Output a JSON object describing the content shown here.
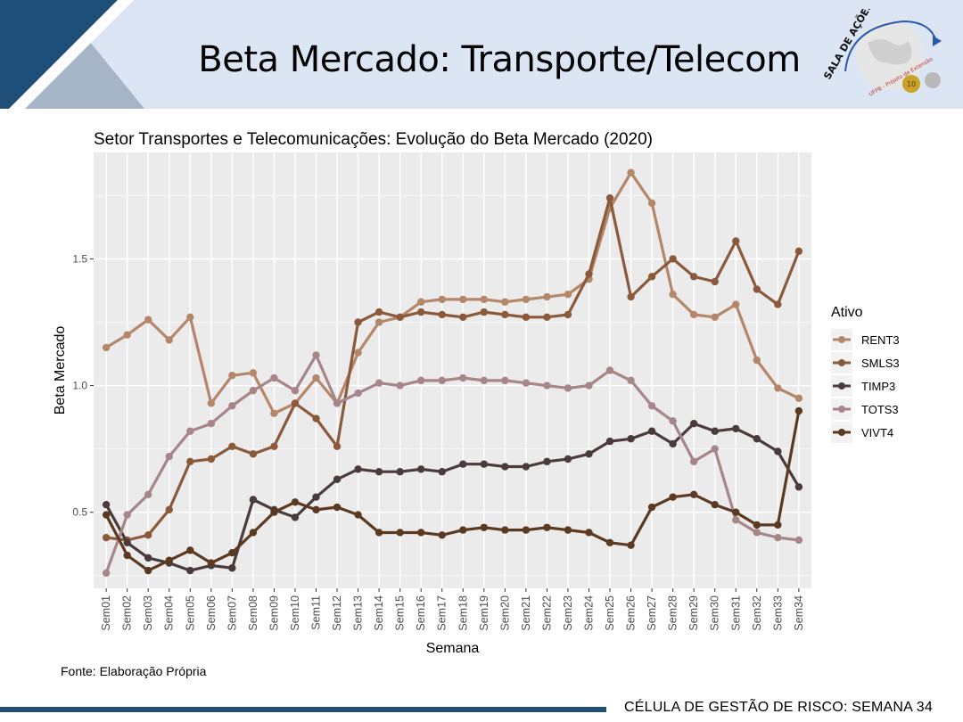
{
  "slide": {
    "title": "Beta Mercado: Transporte/Telecom",
    "source": "Fonte: Elaboração Própria",
    "footer": "CÉLULA DE GESTÃO DE RISCO: SEMANA 34",
    "logo": {
      "text": "SALA DE AÇÕES",
      "subtext": "UFPB - Projeto de Extensão",
      "badge": "10"
    }
  },
  "colors": {
    "banner_light": "#dce5f3",
    "banner_dark": "#1f4e79",
    "banner_mid": "#a6b4c7",
    "panel": "#ebebeb",
    "RENT3": "#b5876a",
    "SMLS3": "#8b5a3c",
    "TIMP3": "#4a3c3c",
    "TOTS3": "#a7868a",
    "VIVT4": "#5c3a22"
  },
  "chart_data": {
    "type": "line",
    "title": "Setor Transportes e Telecomunicações: Evolução do Beta Mercado (2020)",
    "xlabel": "Semana",
    "ylabel": "Beta Mercado",
    "ylim": [
      0.2,
      1.92
    ],
    "yticks": [
      0.5,
      1.0,
      1.5
    ],
    "ytick_labels": [
      "0.5",
      "1.0",
      "1.5"
    ],
    "grid": true,
    "legend_title": "Ativo",
    "legend_position": "right",
    "categories": [
      "Sem01",
      "Sem02",
      "Sem03",
      "Sem04",
      "Sem05",
      "Sem06",
      "Sem07",
      "Sem08",
      "Sem09",
      "Sem10",
      "Sem11",
      "Sem12",
      "Sem13",
      "Sem14",
      "Sem15",
      "Sem16",
      "Sem17",
      "Sem18",
      "Sem19",
      "Sem20",
      "Sem21",
      "Sem22",
      "Sem23",
      "Sem24",
      "Sem25",
      "Sem26",
      "Sem27",
      "Sem28",
      "Sem29",
      "Sem30",
      "Sem31",
      "Sem32",
      "Sem33",
      "Sem34"
    ],
    "series": [
      {
        "name": "RENT3",
        "values": [
          1.15,
          1.2,
          1.26,
          1.18,
          1.27,
          0.93,
          1.04,
          1.05,
          0.89,
          0.93,
          1.03,
          0.93,
          1.13,
          1.25,
          1.27,
          1.33,
          1.34,
          1.34,
          1.34,
          1.33,
          1.34,
          1.35,
          1.36,
          1.42,
          1.7,
          1.84,
          1.72,
          1.36,
          1.28,
          1.27,
          1.32,
          1.1,
          0.99,
          0.95
        ]
      },
      {
        "name": "SMLS3",
        "values": [
          0.4,
          0.39,
          0.41,
          0.51,
          0.7,
          0.71,
          0.76,
          0.73,
          0.76,
          0.93,
          0.87,
          0.76,
          1.25,
          1.29,
          1.27,
          1.29,
          1.28,
          1.27,
          1.29,
          1.28,
          1.27,
          1.27,
          1.28,
          1.44,
          1.74,
          1.35,
          1.43,
          1.5,
          1.43,
          1.41,
          1.57,
          1.38,
          1.32,
          1.53
        ]
      },
      {
        "name": "TIMP3",
        "values": [
          0.53,
          0.38,
          0.32,
          0.3,
          0.27,
          0.29,
          0.28,
          0.55,
          0.51,
          0.48,
          0.56,
          0.63,
          0.67,
          0.66,
          0.66,
          0.67,
          0.66,
          0.69,
          0.69,
          0.68,
          0.68,
          0.7,
          0.71,
          0.73,
          0.78,
          0.79,
          0.82,
          0.77,
          0.85,
          0.82,
          0.83,
          0.79,
          0.74,
          0.6
        ]
      },
      {
        "name": "TOTS3",
        "values": [
          0.26,
          0.49,
          0.57,
          0.72,
          0.82,
          0.85,
          0.92,
          0.98,
          1.03,
          0.98,
          1.12,
          0.93,
          0.97,
          1.01,
          1.0,
          1.02,
          1.02,
          1.03,
          1.02,
          1.02,
          1.01,
          1.0,
          0.99,
          1.0,
          1.06,
          1.02,
          0.92,
          0.86,
          0.7,
          0.75,
          0.47,
          0.42,
          0.4,
          0.39
        ]
      },
      {
        "name": "VIVT4",
        "values": [
          0.49,
          0.33,
          0.27,
          0.31,
          0.35,
          0.3,
          0.34,
          0.42,
          0.5,
          0.54,
          0.51,
          0.52,
          0.49,
          0.42,
          0.42,
          0.42,
          0.41,
          0.43,
          0.44,
          0.43,
          0.43,
          0.44,
          0.43,
          0.42,
          0.38,
          0.37,
          0.52,
          0.56,
          0.57,
          0.53,
          0.5,
          0.45,
          0.45,
          0.9
        ]
      }
    ]
  }
}
